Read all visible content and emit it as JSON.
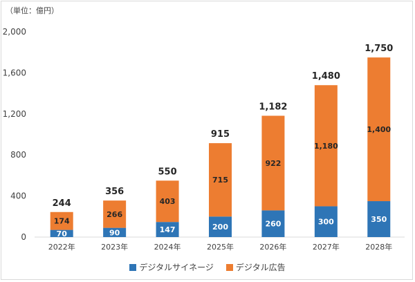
{
  "unit_label": "（単位：億円）",
  "colors": {
    "signage": "#2e75b6",
    "ads": "#ed7d31",
    "axis_text": "#404040",
    "grid": "#d9d9d9"
  },
  "chart_data": {
    "type": "bar",
    "stacked": true,
    "categories": [
      "2022年",
      "2023年",
      "2024年",
      "2025年",
      "2026年",
      "2027年",
      "2028年"
    ],
    "series": [
      {
        "name": "デジタルサイネージ",
        "values": [
          70,
          90,
          147,
          200,
          260,
          300,
          350
        ],
        "labels": [
          "70",
          "90",
          "147",
          "200",
          "260",
          "300",
          "350"
        ]
      },
      {
        "name": "デジタル広告",
        "values": [
          174,
          266,
          403,
          715,
          922,
          1180,
          1400
        ],
        "labels": [
          "174",
          "266",
          "403",
          "715",
          "922",
          "1,180",
          "1,400"
        ]
      }
    ],
    "totals": [
      244,
      356,
      550,
      915,
      1182,
      1480,
      1750
    ],
    "total_labels": [
      "244",
      "356",
      "550",
      "915",
      "1,182",
      "1,480",
      "1,750"
    ],
    "ylim": [
      0,
      2000
    ],
    "yticks": [
      0,
      400,
      800,
      1200,
      1600,
      2000
    ],
    "ytick_labels": [
      "0",
      "400",
      "800",
      "1,200",
      "1,600",
      "2,000"
    ],
    "grid": false,
    "legend_position": "bottom"
  }
}
